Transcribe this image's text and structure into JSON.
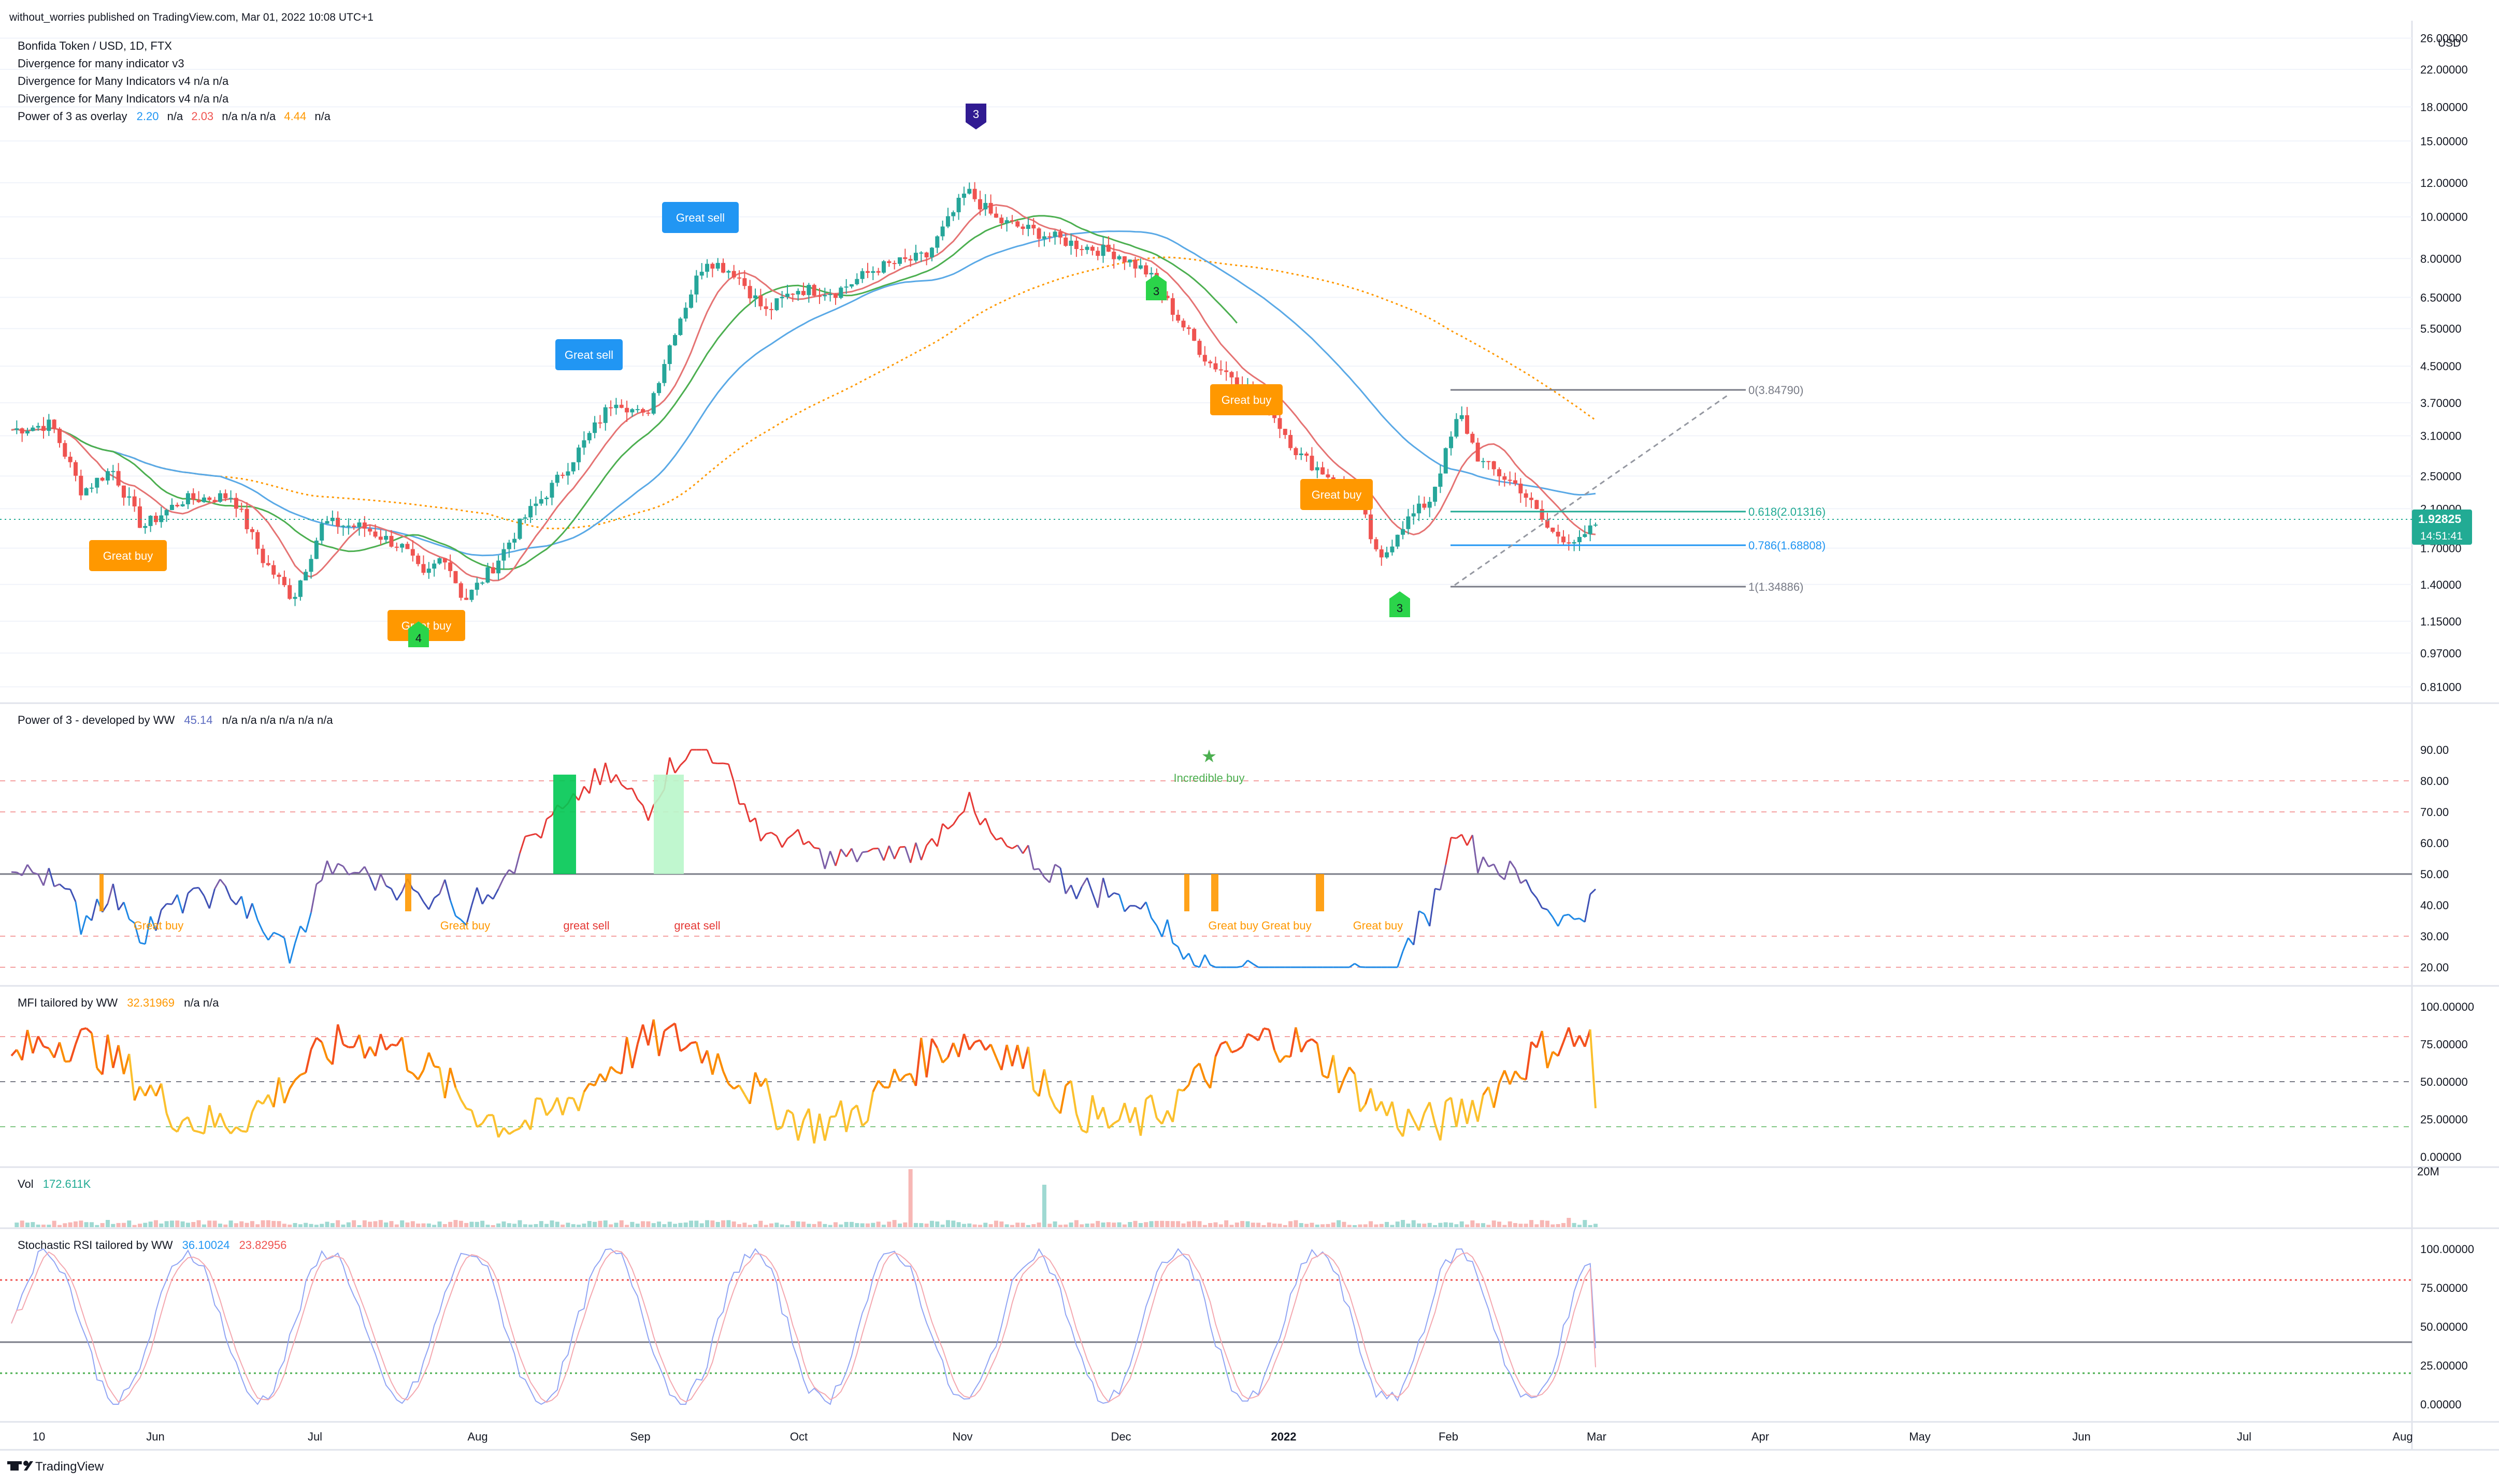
{
  "header": {
    "published": "without_worries published on TradingView.com, Mar 01, 2022 10:08 UTC+1",
    "symbol": "Bonfida Token / USD, 1D, FTX",
    "ind1": "Divergence for many indicator v3",
    "ind2": "Divergence for Many Indicators v4  n/a  n/a",
    "ind3": "Divergence for Many Indicators v4  n/a  n/a",
    "ind4_name": "Power of 3 as overlay",
    "ind4_v1": "2.20",
    "ind4_v2": "n/a",
    "ind4_v3": "2.03",
    "ind4_v4": "n/a  n/a  n/a",
    "ind4_v5": "4.44",
    "ind4_v6": "n/a"
  },
  "colors": {
    "up": "#26a69a",
    "down": "#ef5350",
    "green_ma": "#4caf50",
    "blue_ma": "#5aa9e6",
    "red_ma": "#e57373",
    "orange_ma": "#ff9800",
    "great_buy": "#ff9800",
    "great_sell": "#2196f3",
    "tv_teal": "#22ab94"
  },
  "price_axis": {
    "currency": "USD",
    "ticks": [
      "26.00000",
      "22.00000",
      "18.00000",
      "15.00000",
      "12.00000",
      "10.00000",
      "8.00000",
      "6.50000",
      "5.50000",
      "4.50000",
      "3.70000",
      "3.10000",
      "2.50000",
      "2.10000",
      "1.70000",
      "1.40000",
      "1.15000",
      "0.97000",
      "0.81000"
    ],
    "last_price": "1.92825",
    "countdown": "14:51:41"
  },
  "time_axis": [
    "10",
    "Jun",
    "Jul",
    "Aug",
    "Sep",
    "Oct",
    "Nov",
    "Dec",
    "2022",
    "Feb",
    "Mar",
    "Apr",
    "May",
    "Jun",
    "Jul",
    "Aug"
  ],
  "fib": {
    "l0": "0(3.84790)",
    "l618": "0.618(2.01316)",
    "l786": "0.786(1.68808)",
    "l1": "1(1.34886)"
  },
  "main_labels": {
    "great_buy": "Great buy",
    "great_sell": "Great sell",
    "m3": "3",
    "m4": "4"
  },
  "pane_power": {
    "name": "Power of 3 - developed by WW",
    "value": "45.14",
    "rest": "n/a  n/a  n/a  n/a  n/a  n/a",
    "ticks": [
      "90.00",
      "80.00",
      "70.00",
      "60.00",
      "50.00",
      "40.00",
      "30.00",
      "20.00"
    ],
    "incredible_buy": "Incredible buy",
    "great_buy": "Great buy",
    "great_sell": "great sell",
    "great_buy_dup": "Great buy Great buy"
  },
  "pane_mfi": {
    "name": "MFI tailored by WW",
    "value": "32.31969",
    "rest": "n/a  n/a",
    "ticks": [
      "100.00000",
      "75.00000",
      "50.00000",
      "25.00000",
      "0.00000"
    ]
  },
  "pane_vol": {
    "name": "Vol",
    "value": "172.611K",
    "tick": "20M"
  },
  "pane_stoch": {
    "name": "Stochastic RSI tailored by WW",
    "value1": "36.10024",
    "value2": "23.82956",
    "ticks": [
      "100.00000",
      "75.00000",
      "50.00000",
      "25.00000",
      "0.00000"
    ]
  },
  "footer": {
    "brand": "TradingView"
  },
  "chart_data": {
    "type": "candlestick",
    "symbol": "Bonfida Token / USD",
    "timeframe": "1D",
    "scale": "log",
    "y_range": [
      0.78,
      27
    ],
    "key_points": [
      {
        "date": "2021-05-10",
        "close": 3.3
      },
      {
        "date": "2021-06-01",
        "close": 2.1
      },
      {
        "date": "2021-07-20",
        "close": 1.25
      },
      {
        "date": "2021-08-20",
        "close": 3.7
      },
      {
        "date": "2021-09-10",
        "close": 8.2
      },
      {
        "date": "2021-10-01",
        "close": 6.8
      },
      {
        "date": "2021-11-04",
        "close": 11.5
      },
      {
        "date": "2021-12-01",
        "close": 8.0
      },
      {
        "date": "2021-12-20",
        "close": 3.8
      },
      {
        "date": "2022-01-22",
        "close": 1.55
      },
      {
        "date": "2022-02-08",
        "close": 3.5
      },
      {
        "date": "2022-02-24",
        "close": 1.75
      },
      {
        "date": "2022-03-01",
        "close": 1.92825
      }
    ],
    "fib_levels": [
      {
        "level": "0",
        "value": 3.8479
      },
      {
        "level": "0.618",
        "value": 2.01316
      },
      {
        "level": "0.786",
        "value": 1.68808
      },
      {
        "level": "1",
        "value": 1.34886
      }
    ]
  }
}
